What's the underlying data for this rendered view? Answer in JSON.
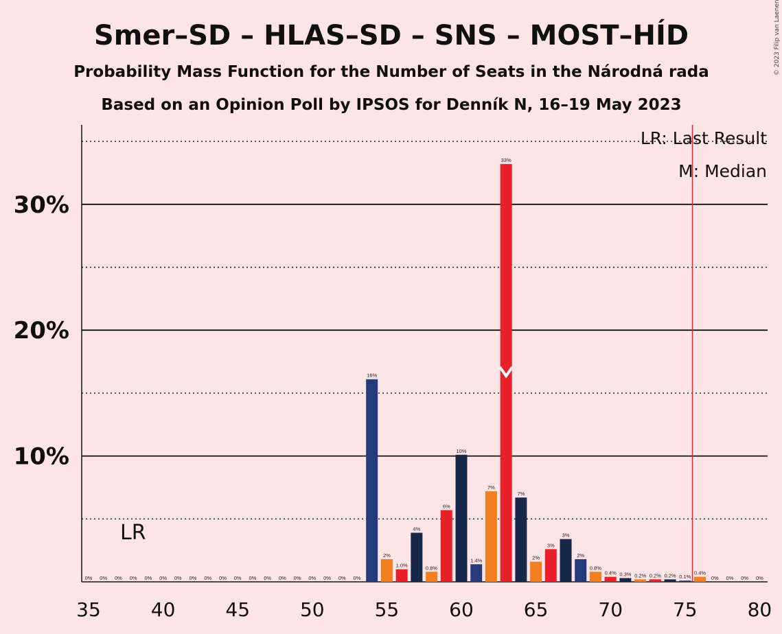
{
  "title": "Smer–SD – HLAS–SD – SNS – MOST–HÍD",
  "subtitle1": "Probability Mass Function for the Number of Seats in the Národná rada",
  "subtitle2": "Based on an Opinion Poll by IPSOS for Denník N, 16–19 May 2023",
  "legend_lr": "LR: Last Result",
  "legend_m": "M: Median",
  "lr_label": "LR",
  "copyright": "© 2023 Filip van Laenen",
  "chart_data": {
    "type": "bar",
    "x": [
      35,
      36,
      37,
      38,
      39,
      40,
      41,
      42,
      43,
      44,
      45,
      46,
      47,
      48,
      49,
      50,
      51,
      52,
      53,
      54,
      55,
      56,
      57,
      58,
      59,
      60,
      61,
      62,
      63,
      64,
      65,
      66,
      67,
      68,
      69,
      70,
      71,
      72,
      73,
      74,
      75,
      76,
      77,
      78,
      79,
      80
    ],
    "values": [
      0,
      0,
      0,
      0,
      0,
      0,
      0,
      0,
      0,
      0,
      0,
      0,
      0,
      0,
      0,
      0,
      0,
      0,
      0,
      16.1,
      1.8,
      1.0,
      3.9,
      0.8,
      5.7,
      10.1,
      1.4,
      7.2,
      33.2,
      6.7,
      1.6,
      2.6,
      3.4,
      1.8,
      0.8,
      0.4,
      0.3,
      0.2,
      0.2,
      0.2,
      0.1,
      0.4,
      0,
      0,
      0,
      0
    ],
    "labels": [
      "0%",
      "0%",
      "0%",
      "0%",
      "0%",
      "0%",
      "0%",
      "0%",
      "0%",
      "0%",
      "0%",
      "0%",
      "0%",
      "0%",
      "0%",
      "0%",
      "0%",
      "0%",
      "0%",
      "16%",
      "2%",
      "1.0%",
      "4%",
      "0.8%",
      "6%",
      "10%",
      "1.4%",
      "7%",
      "33%",
      "7%",
      "2%",
      "3%",
      "3%",
      "2%",
      "0.8%",
      "0.4%",
      "0.3%",
      "0.2%",
      "0.2%",
      "0.2%",
      "0.1%",
      "0.4%",
      "0%",
      "0%",
      "0%",
      "0%"
    ],
    "xticks": [
      "35",
      "40",
      "45",
      "50",
      "55",
      "60",
      "65",
      "70",
      "75",
      "80"
    ],
    "yticks": [
      "10%",
      "20%",
      "30%"
    ],
    "ylim": [
      0,
      36
    ],
    "xlim": [
      35,
      80
    ],
    "median": 63,
    "last_result": 76,
    "colors": {
      "navy": "#253a7a",
      "orange": "#f47f20",
      "red": "#e8202a",
      "dark": "#16294a",
      "lr_line": "#e8202a"
    },
    "color_cycle": [
      "navy",
      "orange",
      "red",
      "dark",
      "orange",
      "red",
      "dark"
    ]
  }
}
